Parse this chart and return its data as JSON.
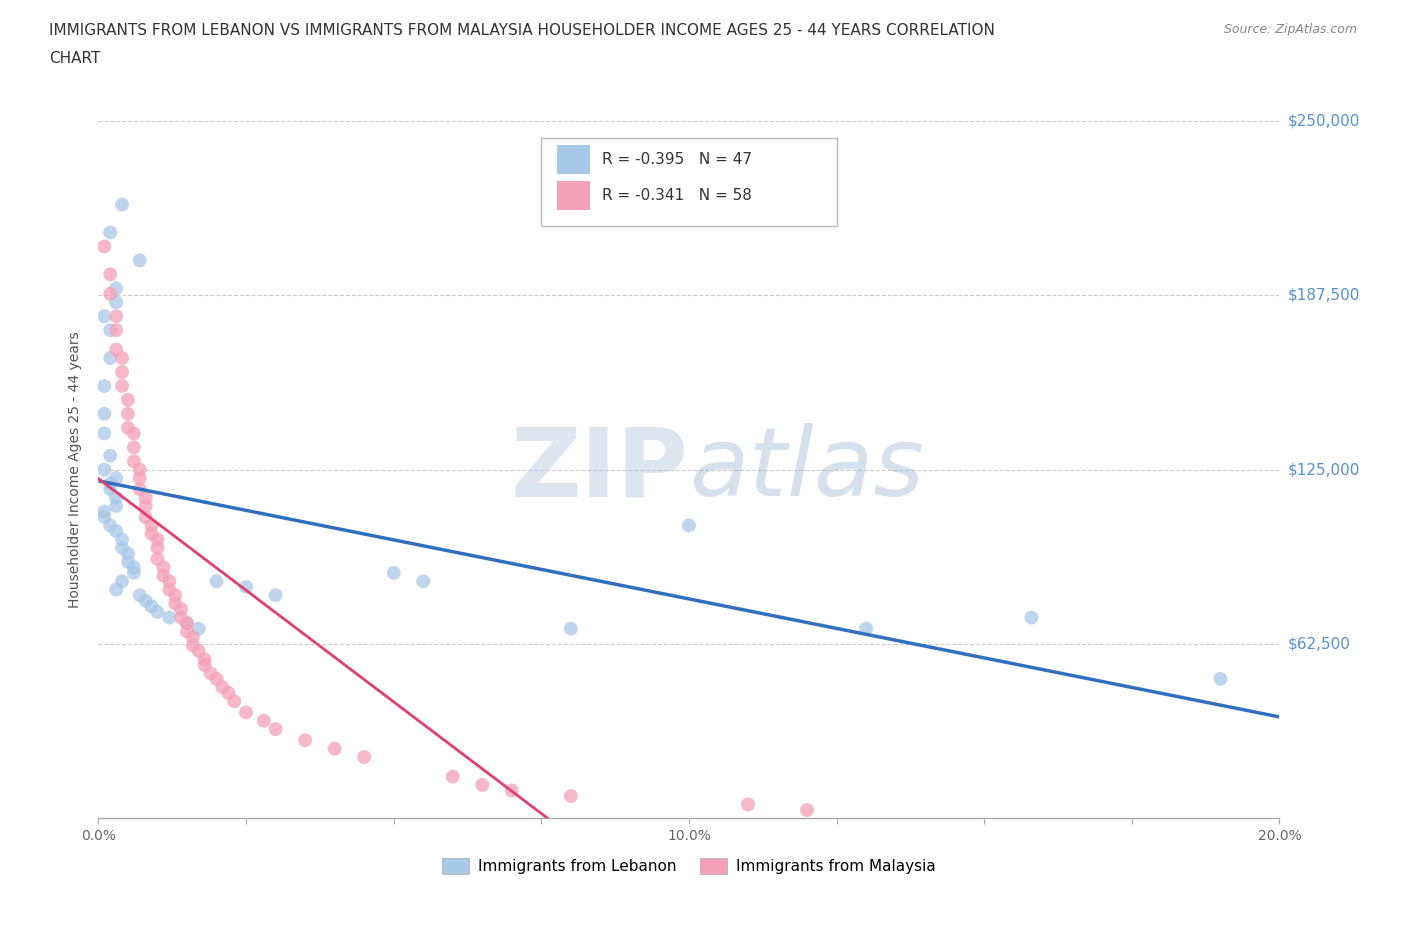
{
  "title_line1": "IMMIGRANTS FROM LEBANON VS IMMIGRANTS FROM MALAYSIA HOUSEHOLDER INCOME AGES 25 - 44 YEARS CORRELATION",
  "title_line2": "CHART",
  "source": "Source: ZipAtlas.com",
  "ylabel": "Householder Income Ages 25 - 44 years",
  "xlim": [
    0.0,
    0.2
  ],
  "ylim": [
    0,
    250000
  ],
  "yticks": [
    0,
    62500,
    125000,
    187500,
    250000
  ],
  "ytick_labels": [
    "",
    "$62,500",
    "$125,000",
    "$187,500",
    "$250,000"
  ],
  "xticks": [
    0.0,
    0.025,
    0.05,
    0.075,
    0.1,
    0.125,
    0.15,
    0.175,
    0.2
  ],
  "xtick_labels": [
    "0.0%",
    "",
    "",
    "",
    "10.0%",
    "",
    "",
    "",
    "20.0%"
  ],
  "lebanon_color": "#a8c8e8",
  "malaysia_color": "#f4a0b8",
  "lebanon_line_color": "#3070c0",
  "malaysia_line_color": "#e04070",
  "watermark": "ZIPatlas",
  "legend_lb_r": "R = -0.395",
  "legend_lb_n": "N = 47",
  "legend_my_r": "R = -0.341",
  "legend_my_n": "N = 58",
  "legend_lb_label": "Immigrants from Lebanon",
  "legend_my_label": "Immigrants from Malaysia",
  "lebanon_x": [
    0.004,
    0.002,
    0.007,
    0.003,
    0.003,
    0.001,
    0.002,
    0.002,
    0.001,
    0.001,
    0.001,
    0.002,
    0.001,
    0.003,
    0.002,
    0.002,
    0.003,
    0.003,
    0.001,
    0.001,
    0.002,
    0.003,
    0.004,
    0.004,
    0.005,
    0.005,
    0.006,
    0.006,
    0.004,
    0.003,
    0.007,
    0.008,
    0.009,
    0.01,
    0.012,
    0.015,
    0.017,
    0.02,
    0.025,
    0.03,
    0.05,
    0.055,
    0.08,
    0.1,
    0.13,
    0.158,
    0.19
  ],
  "lebanon_y": [
    220000,
    210000,
    200000,
    190000,
    185000,
    180000,
    175000,
    165000,
    155000,
    145000,
    138000,
    130000,
    125000,
    122000,
    120000,
    118000,
    115000,
    112000,
    110000,
    108000,
    105000,
    103000,
    100000,
    97000,
    95000,
    92000,
    90000,
    88000,
    85000,
    82000,
    80000,
    78000,
    76000,
    74000,
    72000,
    70000,
    68000,
    85000,
    83000,
    80000,
    88000,
    85000,
    68000,
    105000,
    68000,
    72000,
    50000
  ],
  "malaysia_x": [
    0.001,
    0.002,
    0.002,
    0.003,
    0.003,
    0.003,
    0.004,
    0.004,
    0.004,
    0.005,
    0.005,
    0.005,
    0.006,
    0.006,
    0.006,
    0.007,
    0.007,
    0.007,
    0.008,
    0.008,
    0.008,
    0.009,
    0.009,
    0.01,
    0.01,
    0.01,
    0.011,
    0.011,
    0.012,
    0.012,
    0.013,
    0.013,
    0.014,
    0.014,
    0.015,
    0.015,
    0.016,
    0.016,
    0.017,
    0.018,
    0.018,
    0.019,
    0.02,
    0.021,
    0.022,
    0.023,
    0.025,
    0.028,
    0.03,
    0.035,
    0.04,
    0.045,
    0.06,
    0.065,
    0.07,
    0.08,
    0.11,
    0.12
  ],
  "malaysia_y": [
    205000,
    195000,
    188000,
    180000,
    175000,
    168000,
    165000,
    160000,
    155000,
    150000,
    145000,
    140000,
    138000,
    133000,
    128000,
    125000,
    122000,
    118000,
    115000,
    112000,
    108000,
    105000,
    102000,
    100000,
    97000,
    93000,
    90000,
    87000,
    85000,
    82000,
    80000,
    77000,
    75000,
    72000,
    70000,
    67000,
    65000,
    62000,
    60000,
    57000,
    55000,
    52000,
    50000,
    47000,
    45000,
    42000,
    38000,
    35000,
    32000,
    28000,
    25000,
    22000,
    15000,
    12000,
    10000,
    8000,
    5000,
    3000
  ]
}
